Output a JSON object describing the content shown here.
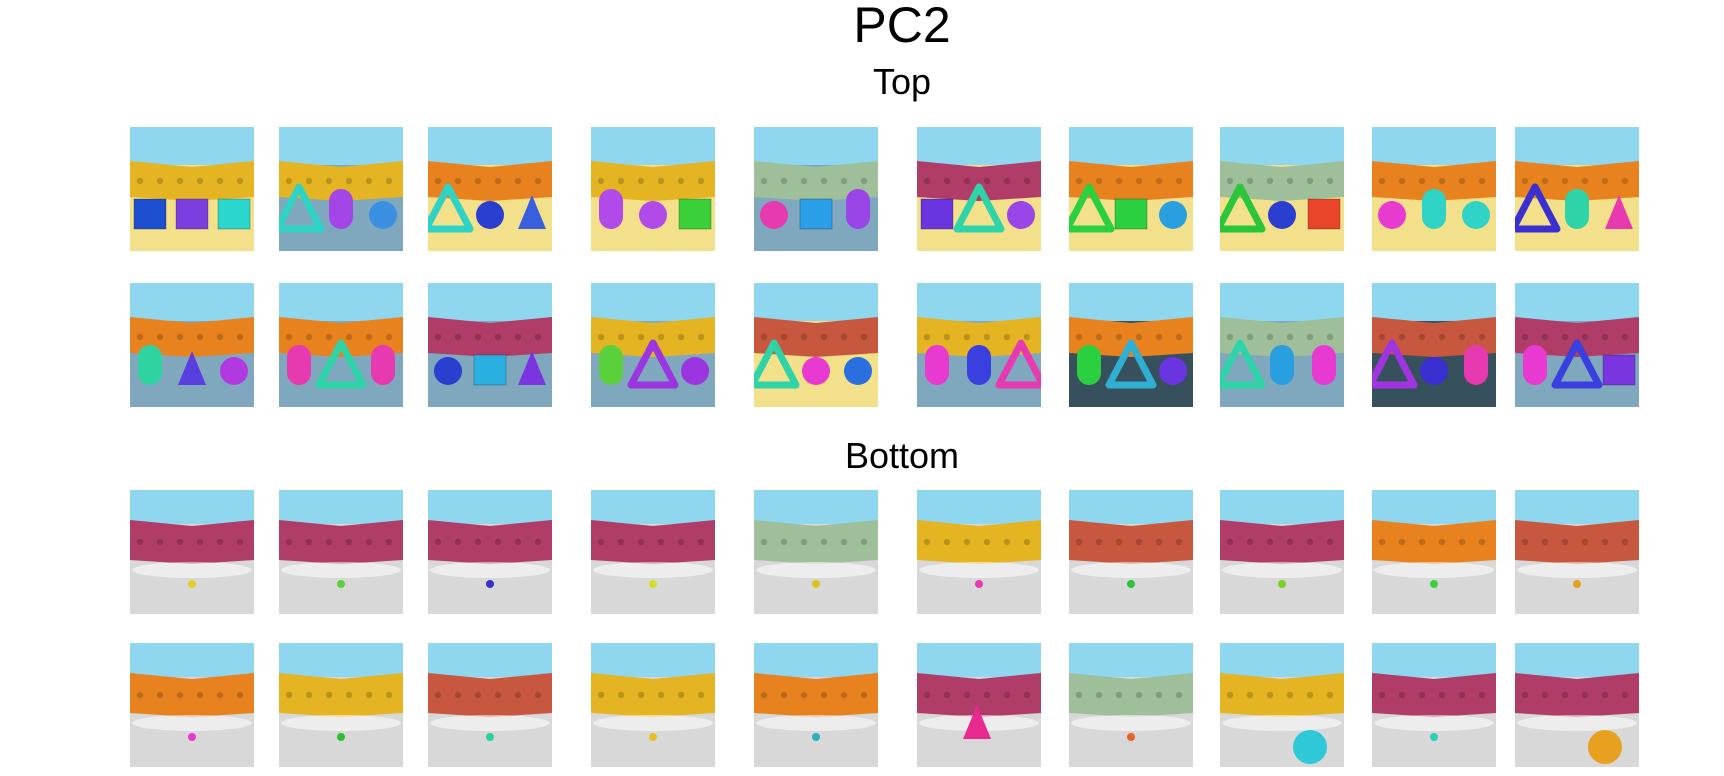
{
  "figure": {
    "title": "PC2",
    "sections": [
      {
        "label": "Top"
      },
      {
        "label": "Bottom"
      }
    ]
  },
  "colors": {
    "sky": "#8fd6ef",
    "wall_orange": "#e8821f",
    "wall_yellow": "#e4b422",
    "wall_magenta": "#b03c68",
    "wall_brick": "#c8573f",
    "wall_green": "#9fbf9a",
    "floor_yellow": "#f3e08a",
    "floor_blue": "#7fa8bf",
    "floor_dark": "#37505e",
    "floor_gray": "#d8d8d8"
  },
  "thumbnails": [
    {
      "row": 0,
      "col": 0,
      "wall": "yellow",
      "floor": "yellow",
      "objects": [
        {
          "s": "box",
          "c": "#1d4fd0"
        },
        {
          "s": "box",
          "c": "#7b3fe0"
        },
        {
          "s": "box",
          "c": "#2ad7cf"
        }
      ]
    },
    {
      "row": 0,
      "col": 1,
      "wall": "yellow",
      "floor": "blue",
      "objects": [
        {
          "s": "tri",
          "c": "#2fd3c5"
        },
        {
          "s": "cyl",
          "c": "#a445e8"
        },
        {
          "s": "ball",
          "c": "#3a8fe0"
        }
      ]
    },
    {
      "row": 0,
      "col": 2,
      "wall": "orange",
      "floor": "yellow",
      "objects": [
        {
          "s": "tri",
          "c": "#2fd3c5"
        },
        {
          "s": "ball",
          "c": "#2a3fd0"
        },
        {
          "s": "cone",
          "c": "#3a5fe0"
        }
      ]
    },
    {
      "row": 0,
      "col": 3,
      "wall": "yellow",
      "floor": "yellow",
      "objects": [
        {
          "s": "cyl",
          "c": "#b04ae8"
        },
        {
          "s": "ball",
          "c": "#b04ae8"
        },
        {
          "s": "box",
          "c": "#3ad03a"
        }
      ]
    },
    {
      "row": 0,
      "col": 4,
      "wall": "green",
      "floor": "blue",
      "objects": [
        {
          "s": "ball",
          "c": "#e83ab0"
        },
        {
          "s": "box",
          "c": "#2a9fe8"
        },
        {
          "s": "cyl",
          "c": "#9a45e8"
        }
      ]
    },
    {
      "row": 0,
      "col": 5,
      "wall": "magenta",
      "floor": "yellow",
      "objects": [
        {
          "s": "box",
          "c": "#6a35e0"
        },
        {
          "s": "tri",
          "c": "#2fd3a8"
        },
        {
          "s": "ball",
          "c": "#9a45e8"
        }
      ]
    },
    {
      "row": 0,
      "col": 6,
      "wall": "orange",
      "floor": "yellow",
      "objects": [
        {
          "s": "tri",
          "c": "#2ad040"
        },
        {
          "s": "box",
          "c": "#2ad040"
        },
        {
          "s": "ball",
          "c": "#2a9fe0"
        }
      ]
    },
    {
      "row": 0,
      "col": 7,
      "wall": "green",
      "floor": "yellow",
      "objects": [
        {
          "s": "tri",
          "c": "#2ac53a"
        },
        {
          "s": "ball",
          "c": "#2a3fd0"
        },
        {
          "s": "box",
          "c": "#e8452a"
        }
      ]
    },
    {
      "row": 0,
      "col": 8,
      "wall": "orange",
      "floor": "yellow",
      "objects": [
        {
          "s": "ball",
          "c": "#e83ad0"
        },
        {
          "s": "cyl",
          "c": "#2fd3c5"
        },
        {
          "s": "ball",
          "c": "#2fd3c5"
        }
      ]
    },
    {
      "row": 0,
      "col": 9,
      "wall": "orange",
      "floor": "yellow",
      "objects": [
        {
          "s": "tri",
          "c": "#3a2fd0"
        },
        {
          "s": "cyl",
          "c": "#2fd3a8"
        },
        {
          "s": "cone",
          "c": "#e83ab0"
        }
      ]
    },
    {
      "row": 1,
      "col": 0,
      "wall": "orange",
      "floor": "blue",
      "objects": [
        {
          "s": "cyl",
          "c": "#2fd3a0"
        },
        {
          "s": "cone",
          "c": "#5a3fe0"
        },
        {
          "s": "ball",
          "c": "#b03ae0"
        }
      ]
    },
    {
      "row": 1,
      "col": 1,
      "wall": "orange",
      "floor": "blue",
      "objects": [
        {
          "s": "cyl",
          "c": "#e83ab0"
        },
        {
          "s": "tri",
          "c": "#2fd3a8"
        },
        {
          "s": "cyl",
          "c": "#e83ab0"
        }
      ]
    },
    {
      "row": 1,
      "col": 2,
      "wall": "magenta",
      "floor": "blue",
      "objects": [
        {
          "s": "ball",
          "c": "#2a3fd0"
        },
        {
          "s": "box",
          "c": "#2ab0e0"
        },
        {
          "s": "cone",
          "c": "#7a35e0"
        }
      ]
    },
    {
      "row": 1,
      "col": 3,
      "wall": "yellow",
      "floor": "blue",
      "objects": [
        {
          "s": "cyl",
          "c": "#5ad03a"
        },
        {
          "s": "tri",
          "c": "#9a35e0"
        },
        {
          "s": "ball",
          "c": "#9a35e0"
        }
      ]
    },
    {
      "row": 1,
      "col": 4,
      "wall": "brick",
      "floor": "yellow",
      "objects": [
        {
          "s": "tri",
          "c": "#2fd3a8"
        },
        {
          "s": "ball",
          "c": "#e83ad0"
        },
        {
          "s": "ball",
          "c": "#2a6fe0"
        }
      ]
    },
    {
      "row": 1,
      "col": 5,
      "wall": "yellow",
      "floor": "blue",
      "objects": [
        {
          "s": "cyl",
          "c": "#e83ad0"
        },
        {
          "s": "cyl",
          "c": "#3a3fe0"
        },
        {
          "s": "tri",
          "c": "#e83ab0"
        }
      ]
    },
    {
      "row": 1,
      "col": 6,
      "wall": "orange",
      "floor": "dark",
      "objects": [
        {
          "s": "cyl",
          "c": "#2ad040"
        },
        {
          "s": "tri",
          "c": "#2fb0d3"
        },
        {
          "s": "ball",
          "c": "#6a35e0"
        }
      ]
    },
    {
      "row": 1,
      "col": 7,
      "wall": "green",
      "floor": "blue",
      "objects": [
        {
          "s": "tri",
          "c": "#2fd3a8"
        },
        {
          "s": "cyl",
          "c": "#2a9fe0"
        },
        {
          "s": "cyl",
          "c": "#e83ad0"
        }
      ]
    },
    {
      "row": 1,
      "col": 8,
      "wall": "brick",
      "floor": "dark",
      "objects": [
        {
          "s": "tri",
          "c": "#a035e0"
        },
        {
          "s": "ball",
          "c": "#3a2fd0"
        },
        {
          "s": "cyl",
          "c": "#e83ab0"
        }
      ]
    },
    {
      "row": 1,
      "col": 9,
      "wall": "magenta",
      "floor": "blue",
      "objects": [
        {
          "s": "cyl",
          "c": "#e83ad0"
        },
        {
          "s": "tri",
          "c": "#3a3fe0"
        },
        {
          "s": "box",
          "c": "#7a35e0"
        }
      ]
    },
    {
      "row": 2,
      "col": 0,
      "wall": "magenta",
      "floor": "gray",
      "objects": [
        {
          "s": "dot",
          "c": "#e0d02a"
        }
      ]
    },
    {
      "row": 2,
      "col": 1,
      "wall": "magenta",
      "floor": "gray",
      "objects": [
        {
          "s": "dot",
          "c": "#5ad03a"
        }
      ]
    },
    {
      "row": 2,
      "col": 2,
      "wall": "magenta",
      "floor": "gray",
      "objects": [
        {
          "s": "dot",
          "c": "#3a2fd0"
        }
      ]
    },
    {
      "row": 2,
      "col": 3,
      "wall": "magenta",
      "floor": "gray",
      "objects": [
        {
          "s": "dot",
          "c": "#d0e02a"
        }
      ]
    },
    {
      "row": 2,
      "col": 4,
      "wall": "green",
      "floor": "gray",
      "objects": [
        {
          "s": "dot",
          "c": "#e0c020"
        }
      ]
    },
    {
      "row": 2,
      "col": 5,
      "wall": "yellow",
      "floor": "gray",
      "objects": [
        {
          "s": "dot",
          "c": "#e83ab0"
        }
      ]
    },
    {
      "row": 2,
      "col": 6,
      "wall": "brick",
      "floor": "gray",
      "objects": [
        {
          "s": "dot",
          "c": "#2ac040"
        }
      ]
    },
    {
      "row": 2,
      "col": 7,
      "wall": "magenta",
      "floor": "gray",
      "objects": [
        {
          "s": "dot",
          "c": "#7ad02a"
        }
      ]
    },
    {
      "row": 2,
      "col": 8,
      "wall": "orange",
      "floor": "gray",
      "objects": [
        {
          "s": "dot",
          "c": "#3ad040"
        }
      ]
    },
    {
      "row": 2,
      "col": 9,
      "wall": "brick",
      "floor": "gray",
      "objects": [
        {
          "s": "dot",
          "c": "#e8a020"
        }
      ]
    },
    {
      "row": 3,
      "col": 0,
      "wall": "orange",
      "floor": "gray",
      "objects": [
        {
          "s": "dot",
          "c": "#e83ad0"
        }
      ]
    },
    {
      "row": 3,
      "col": 1,
      "wall": "yellow",
      "floor": "gray",
      "objects": [
        {
          "s": "dot",
          "c": "#2ac030"
        }
      ]
    },
    {
      "row": 3,
      "col": 2,
      "wall": "brick",
      "floor": "gray",
      "objects": [
        {
          "s": "dot",
          "c": "#2ad0a0"
        }
      ]
    },
    {
      "row": 3,
      "col": 3,
      "wall": "yellow",
      "floor": "gray",
      "objects": [
        {
          "s": "dot",
          "c": "#e8c020"
        }
      ]
    },
    {
      "row": 3,
      "col": 4,
      "wall": "orange",
      "floor": "gray",
      "objects": [
        {
          "s": "dot",
          "c": "#2ab0c0"
        }
      ]
    },
    {
      "row": 3,
      "col": 5,
      "wall": "magenta",
      "floor": "gray",
      "objects": [
        {
          "s": "cone",
          "c": "#e82a90"
        }
      ]
    },
    {
      "row": 3,
      "col": 6,
      "wall": "green",
      "floor": "gray",
      "objects": [
        {
          "s": "dot",
          "c": "#e8602a"
        }
      ]
    },
    {
      "row": 3,
      "col": 7,
      "wall": "yellow",
      "floor": "gray",
      "objects": [
        {
          "s": "bigball",
          "c": "#2fc8d8"
        }
      ]
    },
    {
      "row": 3,
      "col": 8,
      "wall": "magenta",
      "floor": "gray",
      "objects": [
        {
          "s": "dot",
          "c": "#2ad0b0"
        }
      ]
    },
    {
      "row": 3,
      "col": 9,
      "wall": "magenta",
      "floor": "gray",
      "objects": [
        {
          "s": "bigball",
          "c": "#e8a020"
        }
      ]
    }
  ]
}
